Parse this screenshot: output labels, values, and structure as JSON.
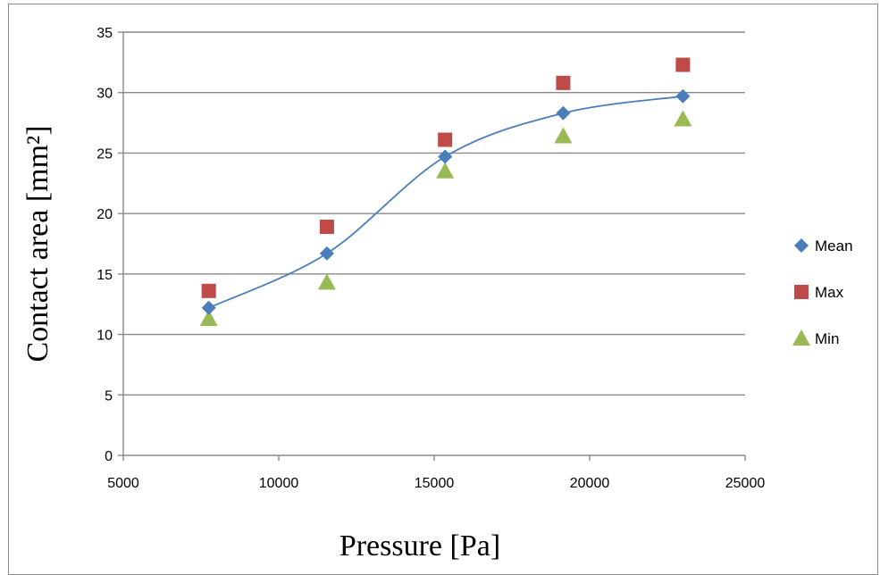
{
  "chart_data": {
    "type": "scatter",
    "xlabel": "Pressure [Pa]",
    "ylabel": "Contact area [mm²]",
    "xlim": [
      5000,
      25000
    ],
    "ylim": [
      0,
      35
    ],
    "xticks": [
      5000,
      10000,
      15000,
      20000,
      25000
    ],
    "yticks": [
      0,
      5,
      10,
      15,
      20,
      25,
      30,
      35
    ],
    "grid": "horizontal",
    "legend_position": "right",
    "series": [
      {
        "name": "Mean",
        "marker": "diamond",
        "color": "#4a7ebb",
        "smooth_line": true,
        "x": [
          7750,
          11550,
          15350,
          19150,
          23000
        ],
        "y": [
          12.2,
          16.7,
          24.7,
          28.3,
          29.7
        ]
      },
      {
        "name": "Max",
        "marker": "square",
        "color": "#be4b48",
        "smooth_line": false,
        "x": [
          7750,
          11550,
          15350,
          19150,
          23000
        ],
        "y": [
          13.6,
          18.9,
          26.1,
          30.8,
          32.3
        ]
      },
      {
        "name": "Min",
        "marker": "triangle",
        "color": "#98b954",
        "smooth_line": false,
        "x": [
          7750,
          11550,
          15350,
          19150,
          23000
        ],
        "y": [
          11.3,
          14.3,
          23.5,
          26.4,
          27.8
        ]
      }
    ]
  }
}
